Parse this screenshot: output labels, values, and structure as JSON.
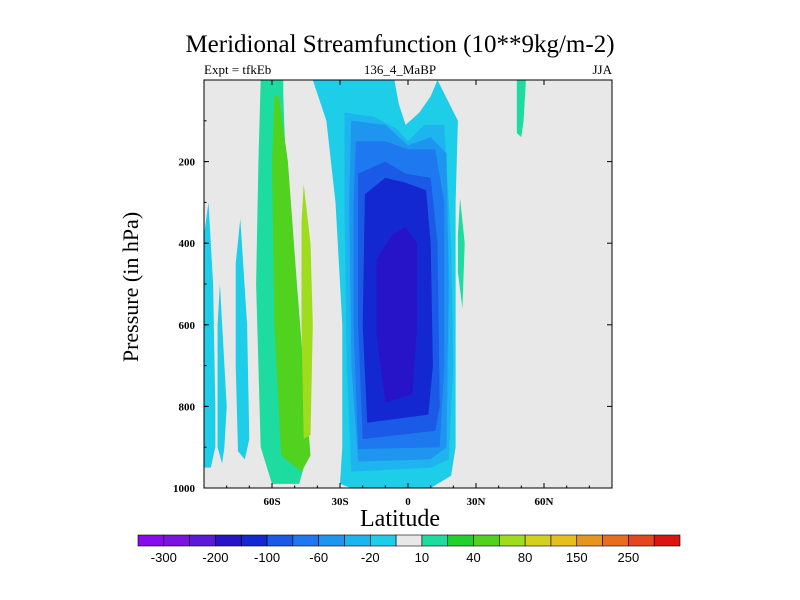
{
  "chart_data": {
    "type": "heatmap",
    "title": "Meridional Streamfunction (10**9kg/m-2)",
    "subtitle_left": "Expt = tfkEb",
    "subtitle_center": "136_4_MaBP",
    "subtitle_right": "JJA",
    "xlabel": "Latitude",
    "ylabel": "Pressure (in hPa)",
    "xlim": [
      -90,
      90
    ],
    "ylim": [
      1000,
      0
    ],
    "x_ticks": [
      {
        "value": -60,
        "label": "60S"
      },
      {
        "value": -30,
        "label": "30S"
      },
      {
        "value": 0,
        "label": "0"
      },
      {
        "value": 30,
        "label": "30N"
      },
      {
        "value": 60,
        "label": "60N"
      }
    ],
    "y_ticks": [
      {
        "value": 200,
        "label": "200"
      },
      {
        "value": 400,
        "label": "400"
      },
      {
        "value": 600,
        "label": "600"
      },
      {
        "value": 800,
        "label": "800"
      },
      {
        "value": 1000,
        "label": "1000"
      }
    ],
    "background_color": "#e8e8e8",
    "colorbar": {
      "colors": [
        "#8a0aef",
        "#7b14e0",
        "#5a1ad8",
        "#2814c8",
        "#1428d2",
        "#1a5ae6",
        "#1e78f0",
        "#1e96f0",
        "#1eb4f0",
        "#1ecde8",
        "#e8e8e8",
        "#1edca0",
        "#1ed22a",
        "#50d21e",
        "#a0dc1e",
        "#d2d21e",
        "#e6be1e",
        "#e6961e",
        "#e66e1e",
        "#e6461e",
        "#dc1414"
      ],
      "labels": [
        "-300",
        "-200",
        "-100",
        "-60",
        "-20",
        "10",
        "40",
        "80",
        "150",
        "250"
      ]
    },
    "contour_regions": [
      {
        "name": "sh-cell-outer",
        "level": "10",
        "color": "#1edca0",
        "points": [
          [
            -64,
            0
          ],
          [
            -55,
            0
          ],
          [
            -55,
            40
          ],
          [
            -54,
            200
          ],
          [
            -50,
            650
          ],
          [
            -46,
            950
          ],
          [
            -48,
            990
          ],
          [
            -60,
            990
          ],
          [
            -65,
            900
          ],
          [
            -67,
            500
          ],
          [
            -66,
            200
          ],
          [
            -65,
            0
          ]
        ]
      },
      {
        "name": "sh-cell-40",
        "level": "40",
        "color": "#50d21e",
        "points": [
          [
            -57,
            40
          ],
          [
            -53,
            200
          ],
          [
            -49,
            500
          ],
          [
            -43,
            920
          ],
          [
            -47,
            960
          ],
          [
            -56,
            920
          ],
          [
            -59,
            600
          ],
          [
            -60,
            200
          ],
          [
            -59,
            40
          ]
        ]
      },
      {
        "name": "sh-cell-80",
        "level": "80",
        "color": "#a0dc1e",
        "points": [
          [
            -46,
            255
          ],
          [
            -43,
            400
          ],
          [
            -42,
            600
          ],
          [
            -43,
            870
          ],
          [
            -46,
            880
          ],
          [
            -47,
            600
          ],
          [
            -47,
            350
          ]
        ]
      },
      {
        "name": "sh-sliver-a",
        "level": "-20",
        "color": "#1ecde8",
        "points": [
          [
            -88,
            300
          ],
          [
            -86,
            500
          ],
          [
            -85,
            800
          ],
          [
            -85,
            900
          ],
          [
            -87,
            950
          ],
          [
            -90,
            950
          ],
          [
            -90,
            380
          ]
        ]
      },
      {
        "name": "sh-sliver-b",
        "level": "-20",
        "color": "#1ecde8",
        "points": [
          [
            -83,
            500
          ],
          [
            -80,
            800
          ],
          [
            -81,
            900
          ],
          [
            -82,
            940
          ],
          [
            -84,
            900
          ],
          [
            -84,
            600
          ]
        ]
      },
      {
        "name": "sh-sliver-c",
        "level": "-20",
        "color": "#1ecde8",
        "points": [
          [
            -74,
            340
          ],
          [
            -71,
            600
          ],
          [
            -70,
            880
          ],
          [
            -72,
            930
          ],
          [
            -75,
            910
          ],
          [
            -76,
            700
          ],
          [
            -76,
            450
          ]
        ]
      },
      {
        "name": "nh-sliver-a",
        "level": "10",
        "color": "#1edca0",
        "points": [
          [
            23,
            290
          ],
          [
            25,
            400
          ],
          [
            24,
            560
          ],
          [
            22,
            470
          ],
          [
            22,
            380
          ]
        ]
      },
      {
        "name": "nh-sliver-b",
        "level": "10",
        "color": "#1edca0",
        "points": [
          [
            48,
            0
          ],
          [
            52,
            0
          ],
          [
            51,
            100
          ],
          [
            50,
            140
          ],
          [
            48,
            130
          ]
        ]
      },
      {
        "name": "eq-cell-20",
        "level": "-20",
        "color": "#1ecde8",
        "points": [
          [
            -42,
            0
          ],
          [
            -6,
            0
          ],
          [
            -4,
            60
          ],
          [
            -1,
            110
          ],
          [
            5,
            80
          ],
          [
            10,
            40
          ],
          [
            13,
            0
          ],
          [
            22,
            100
          ],
          [
            21,
            300
          ],
          [
            21,
            600
          ],
          [
            21,
            900
          ],
          [
            19,
            970
          ],
          [
            10,
            1000
          ],
          [
            -25,
            1000
          ],
          [
            -30,
            990
          ],
          [
            -29,
            900
          ],
          [
            -29,
            600
          ],
          [
            -32,
            300
          ],
          [
            -36,
            100
          ]
        ]
      },
      {
        "name": "eq-cell-60",
        "level": "-60",
        "color": "#1eb4f0",
        "points": [
          [
            -28,
            80
          ],
          [
            -15,
            90
          ],
          [
            -5,
            120
          ],
          [
            0,
            150
          ],
          [
            7,
            110
          ],
          [
            16,
            110
          ],
          [
            19,
            400
          ],
          [
            20,
            700
          ],
          [
            18,
            930
          ],
          [
            10,
            950
          ],
          [
            -25,
            960
          ],
          [
            -27,
            700
          ],
          [
            -28,
            300
          ]
        ]
      },
      {
        "name": "eq-cell-100a",
        "level": "-100",
        "color": "#1e96f0",
        "points": [
          [
            -25,
            100
          ],
          [
            -10,
            110
          ],
          [
            0,
            160
          ],
          [
            10,
            140
          ],
          [
            17,
            180
          ],
          [
            18,
            500
          ],
          [
            17,
            900
          ],
          [
            10,
            930
          ],
          [
            -22,
            935
          ],
          [
            -25,
            700
          ],
          [
            -26,
            300
          ]
        ]
      },
      {
        "name": "eq-cell-100b",
        "level": "-100",
        "color": "#1e78f0",
        "points": [
          [
            -23,
            150
          ],
          [
            -10,
            150
          ],
          [
            0,
            170
          ],
          [
            12,
            170
          ],
          [
            16,
            300
          ],
          [
            16,
            700
          ],
          [
            14,
            900
          ],
          [
            -22,
            905
          ],
          [
            -24,
            600
          ],
          [
            -24,
            300
          ]
        ]
      },
      {
        "name": "eq-cell-100c",
        "level": "-100",
        "color": "#1a5ae6",
        "points": [
          [
            -22,
            230
          ],
          [
            -10,
            200
          ],
          [
            -1,
            230
          ],
          [
            10,
            240
          ],
          [
            13,
            400
          ],
          [
            14,
            800
          ],
          [
            12,
            860
          ],
          [
            -20,
            880
          ],
          [
            -22,
            600
          ]
        ]
      },
      {
        "name": "eq-cell-150",
        "level": "-150",
        "color": "#1428d2",
        "points": [
          [
            -19,
            280
          ],
          [
            -10,
            240
          ],
          [
            -2,
            250
          ],
          [
            8,
            270
          ],
          [
            10,
            400
          ],
          [
            11,
            700
          ],
          [
            9,
            820
          ],
          [
            -18,
            840
          ],
          [
            -20,
            600
          ]
        ]
      },
      {
        "name": "eq-cell-200",
        "level": "-200",
        "color": "#2814c8",
        "points": [
          [
            -14,
            440
          ],
          [
            -7,
            380
          ],
          [
            -1,
            360
          ],
          [
            4,
            400
          ],
          [
            4,
            600
          ],
          [
            2,
            770
          ],
          [
            -10,
            790
          ],
          [
            -14,
            620
          ]
        ]
      }
    ]
  }
}
